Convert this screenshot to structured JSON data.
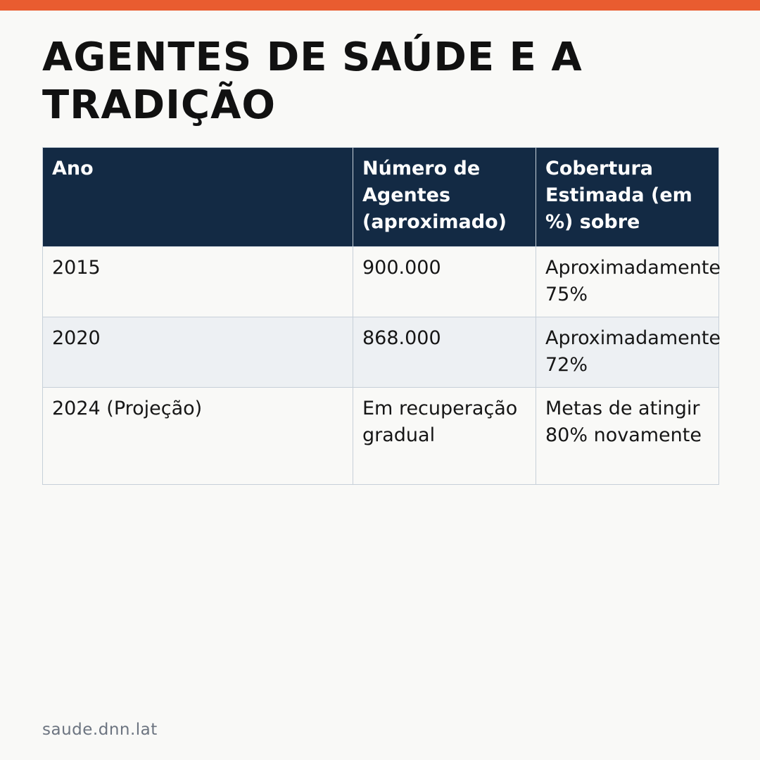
{
  "accent_color": "#e95c30",
  "header_color": "#132a44",
  "title": "AGENTES DE SAÚDE E A TRADIÇÃO",
  "table": {
    "headers": {
      "col1": "Ano",
      "col2": "Número de Agentes (aproximado)",
      "col3": "Cobertura Estimada (em %) sobre"
    },
    "rows": [
      {
        "ano": "2015",
        "agentes": "900.000",
        "cobertura_line1": "Aproximadamente",
        "cobertura_line2": "75%"
      },
      {
        "ano": "2020",
        "agentes": "868.000",
        "cobertura_line1": "Aproximadamente",
        "cobertura_line2": "72%"
      },
      {
        "ano": "2024 (Projeção)",
        "agentes": "Em recuperação gradual",
        "cobertura": "Metas de atingir 80% novamente"
      }
    ]
  },
  "footer": "saude.dnn.lat"
}
